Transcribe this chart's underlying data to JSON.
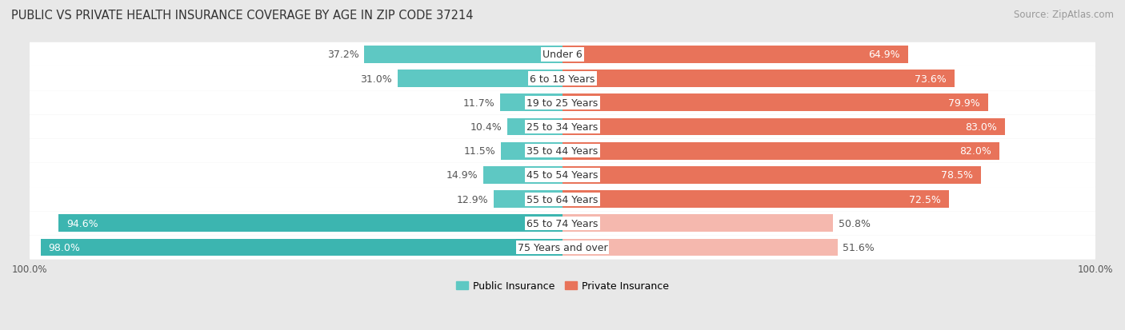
{
  "title": "PUBLIC VS PRIVATE HEALTH INSURANCE COVERAGE BY AGE IN ZIP CODE 37214",
  "source": "Source: ZipAtlas.com",
  "categories": [
    "Under 6",
    "6 to 18 Years",
    "19 to 25 Years",
    "25 to 34 Years",
    "35 to 44 Years",
    "45 to 54 Years",
    "55 to 64 Years",
    "65 to 74 Years",
    "75 Years and over"
  ],
  "public_values": [
    37.2,
    31.0,
    11.7,
    10.4,
    11.5,
    14.9,
    12.9,
    94.6,
    98.0
  ],
  "private_values": [
    64.9,
    73.6,
    79.9,
    83.0,
    82.0,
    78.5,
    72.5,
    50.8,
    51.6
  ],
  "public_color_high": "#3cb5b0",
  "public_color_low": "#5ec8c3",
  "private_color_high": "#e8735a",
  "private_color_low": "#f5b8ae",
  "bg_color": "#e8e8e8",
  "row_bg": "#f5f5f5",
  "label_fontsize": 9.0,
  "title_fontsize": 10.5,
  "source_fontsize": 8.5,
  "legend_labels": [
    "Public Insurance",
    "Private Insurance"
  ]
}
